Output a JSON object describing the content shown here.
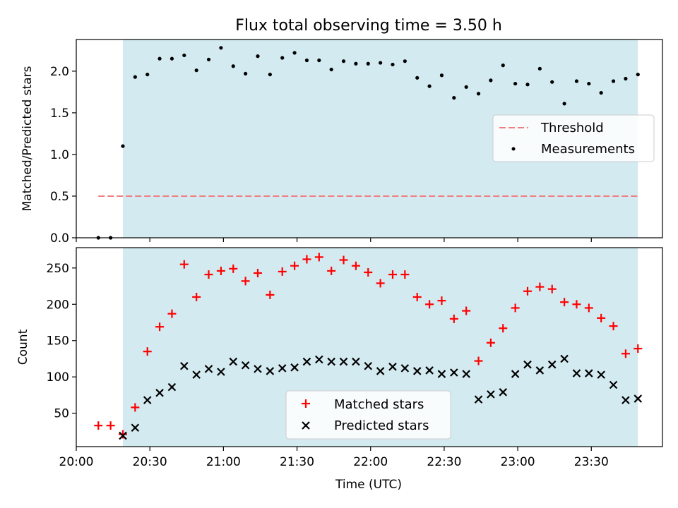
{
  "chart_data": [
    {
      "type": "scatter",
      "title": "Flux total observing time = 3.50 h",
      "xlabel": "",
      "ylabel": "Matched/Predicted stars",
      "ylim": [
        0,
        2.38
      ],
      "yticks": [
        0.0,
        0.5,
        1.0,
        1.5,
        2.0
      ],
      "ytick_labels": [
        "0.0",
        "0.5",
        "1.0",
        "1.5",
        "2.0"
      ],
      "grid": false,
      "legend_position": "center-right",
      "shaded_interval": [
        "20:19",
        "23:49"
      ],
      "series": [
        {
          "name": "Threshold",
          "kind": "dashed-line",
          "color": "#f08080",
          "x": [
            "20:09",
            "23:49"
          ],
          "y": [
            0.5,
            0.5
          ]
        },
        {
          "name": "Measurements",
          "kind": "points",
          "color": "#000000",
          "x": [
            "20:09",
            "20:14",
            "20:19",
            "20:24",
            "20:29",
            "20:34",
            "20:39",
            "20:44",
            "20:49",
            "20:54",
            "20:59",
            "21:04",
            "21:09",
            "21:14",
            "21:19",
            "21:24",
            "21:29",
            "21:34",
            "21:39",
            "21:44",
            "21:49",
            "21:54",
            "21:59",
            "22:04",
            "22:09",
            "22:14",
            "22:19",
            "22:24",
            "22:29",
            "22:34",
            "22:39",
            "22:44",
            "22:49",
            "22:54",
            "22:59",
            "23:04",
            "23:09",
            "23:14",
            "23:19",
            "23:24",
            "23:29",
            "23:34",
            "23:39",
            "23:44",
            "23:49"
          ],
          "y": [
            0.0,
            0.0,
            1.1,
            1.93,
            1.96,
            2.15,
            2.15,
            2.19,
            2.01,
            2.14,
            2.28,
            2.06,
            1.97,
            2.18,
            1.96,
            2.16,
            2.22,
            2.13,
            2.13,
            2.02,
            2.12,
            2.09,
            2.09,
            2.1,
            2.08,
            2.12,
            1.92,
            1.82,
            1.95,
            1.68,
            1.81,
            1.73,
            1.89,
            2.07,
            1.85,
            1.84,
            2.03,
            1.87,
            1.61,
            1.88,
            1.85,
            1.74,
            1.88,
            1.91,
            1.96
          ]
        }
      ]
    },
    {
      "type": "scatter",
      "title": "",
      "xlabel": "Time (UTC)",
      "ylabel": "Count",
      "ylim": [
        4,
        278
      ],
      "yticks": [
        50,
        100,
        150,
        200,
        250
      ],
      "ytick_labels": [
        "50",
        "100",
        "150",
        "200",
        "250"
      ],
      "xlim": [
        "20:00",
        "23:59"
      ],
      "xticks": [
        "20:00",
        "20:30",
        "21:00",
        "21:30",
        "22:00",
        "22:30",
        "23:00",
        "23:30"
      ],
      "grid": false,
      "legend_position": "lower-center",
      "shaded_interval": [
        "20:19",
        "23:49"
      ],
      "series": [
        {
          "name": "Matched stars",
          "kind": "plus",
          "color": "#ff0000",
          "x": [
            "20:09",
            "20:14",
            "20:19",
            "20:24",
            "20:29",
            "20:34",
            "20:39",
            "20:44",
            "20:49",
            "20:54",
            "20:59",
            "21:04",
            "21:09",
            "21:14",
            "21:19",
            "21:24",
            "21:29",
            "21:34",
            "21:39",
            "21:44",
            "21:49",
            "21:54",
            "21:59",
            "22:04",
            "22:09",
            "22:14",
            "22:19",
            "22:24",
            "22:29",
            "22:34",
            "22:39",
            "22:44",
            "22:49",
            "22:54",
            "22:59",
            "23:04",
            "23:09",
            "23:14",
            "23:19",
            "23:24",
            "23:29",
            "23:34",
            "23:39",
            "23:44",
            "23:49"
          ],
          "y": [
            33,
            33,
            21,
            58,
            135,
            169,
            187,
            255,
            210,
            241,
            246,
            249,
            232,
            243,
            213,
            245,
            253,
            262,
            265,
            246,
            261,
            253,
            244,
            229,
            241,
            241,
            210,
            200,
            205,
            180,
            191,
            122,
            147,
            167,
            195,
            218,
            224,
            221,
            203,
            200,
            195,
            181,
            170,
            132,
            139
          ]
        },
        {
          "name": "Predicted stars",
          "kind": "cross",
          "color": "#000000",
          "x": [
            "20:19",
            "20:24",
            "20:29",
            "20:34",
            "20:39",
            "20:44",
            "20:49",
            "20:54",
            "20:59",
            "21:04",
            "21:09",
            "21:14",
            "21:19",
            "21:24",
            "21:29",
            "21:34",
            "21:39",
            "21:44",
            "21:49",
            "21:54",
            "21:59",
            "22:04",
            "22:09",
            "22:14",
            "22:19",
            "22:24",
            "22:29",
            "22:34",
            "22:39",
            "22:44",
            "22:49",
            "22:54",
            "22:59",
            "23:04",
            "23:09",
            "23:14",
            "23:19",
            "23:24",
            "23:29",
            "23:34",
            "23:39",
            "23:44",
            "23:49"
          ],
          "y": [
            19,
            30,
            68,
            78,
            86,
            115,
            103,
            111,
            107,
            121,
            116,
            111,
            108,
            112,
            113,
            121,
            124,
            121,
            121,
            121,
            115,
            108,
            114,
            112,
            108,
            109,
            104,
            106,
            104,
            69,
            76,
            79,
            104,
            117,
            109,
            117,
            125,
            105,
            105,
            103,
            89,
            68,
            70
          ]
        }
      ]
    }
  ],
  "colors": {
    "shade": "#d3eaf0",
    "threshold": "#f08080",
    "matched": "#ff0000",
    "predicted": "#000000",
    "measurements": "#000000"
  }
}
